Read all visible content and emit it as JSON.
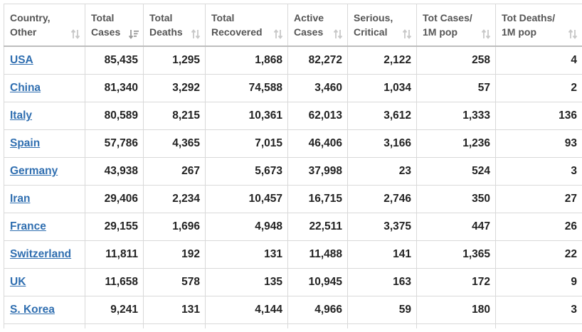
{
  "headers": [
    {
      "line1": "Country,",
      "line2": "Other",
      "sort_icon": "sort-both-icon"
    },
    {
      "line1": "Total",
      "line2": "Cases",
      "sort_icon": "sort-desc-icon"
    },
    {
      "line1": "Total",
      "line2": "Deaths",
      "sort_icon": "sort-both-icon"
    },
    {
      "line1": "Total",
      "line2": "Recovered",
      "sort_icon": "sort-both-icon"
    },
    {
      "line1": "Active",
      "line2": "Cases",
      "sort_icon": "sort-both-icon"
    },
    {
      "line1": "Serious,",
      "line2": "Critical",
      "sort_icon": "sort-both-icon"
    },
    {
      "line1": "Tot Cases/",
      "line2": "1M pop",
      "sort_icon": "sort-both-icon"
    },
    {
      "line1": "Tot Deaths/",
      "line2": "1M pop",
      "sort_icon": "sort-both-icon"
    }
  ],
  "rows": [
    {
      "country": "USA",
      "total_cases": "85,435",
      "total_deaths": "1,295",
      "total_recovered": "1,868",
      "active_cases": "82,272",
      "serious_critical": "2,122",
      "cases_per_1m": "258",
      "deaths_per_1m": "4"
    },
    {
      "country": "China",
      "total_cases": "81,340",
      "total_deaths": "3,292",
      "total_recovered": "74,588",
      "active_cases": "3,460",
      "serious_critical": "1,034",
      "cases_per_1m": "57",
      "deaths_per_1m": "2"
    },
    {
      "country": "Italy",
      "total_cases": "80,589",
      "total_deaths": "8,215",
      "total_recovered": "10,361",
      "active_cases": "62,013",
      "serious_critical": "3,612",
      "cases_per_1m": "1,333",
      "deaths_per_1m": "136"
    },
    {
      "country": "Spain",
      "total_cases": "57,786",
      "total_deaths": "4,365",
      "total_recovered": "7,015",
      "active_cases": "46,406",
      "serious_critical": "3,166",
      "cases_per_1m": "1,236",
      "deaths_per_1m": "93"
    },
    {
      "country": "Germany",
      "total_cases": "43,938",
      "total_deaths": "267",
      "total_recovered": "5,673",
      "active_cases": "37,998",
      "serious_critical": "23",
      "cases_per_1m": "524",
      "deaths_per_1m": "3"
    },
    {
      "country": "Iran",
      "total_cases": "29,406",
      "total_deaths": "2,234",
      "total_recovered": "10,457",
      "active_cases": "16,715",
      "serious_critical": "2,746",
      "cases_per_1m": "350",
      "deaths_per_1m": "27"
    },
    {
      "country": "France",
      "total_cases": "29,155",
      "total_deaths": "1,696",
      "total_recovered": "4,948",
      "active_cases": "22,511",
      "serious_critical": "3,375",
      "cases_per_1m": "447",
      "deaths_per_1m": "26"
    },
    {
      "country": "Switzerland",
      "total_cases": "11,811",
      "total_deaths": "192",
      "total_recovered": "131",
      "active_cases": "11,488",
      "serious_critical": "141",
      "cases_per_1m": "1,365",
      "deaths_per_1m": "22"
    },
    {
      "country": "UK",
      "total_cases": "11,658",
      "total_deaths": "578",
      "total_recovered": "135",
      "active_cases": "10,945",
      "serious_critical": "163",
      "cases_per_1m": "172",
      "deaths_per_1m": "9"
    },
    {
      "country": "S. Korea",
      "total_cases": "9,241",
      "total_deaths": "131",
      "total_recovered": "4,144",
      "active_cases": "4,966",
      "serious_critical": "59",
      "cases_per_1m": "180",
      "deaths_per_1m": "3"
    }
  ],
  "colors": {
    "link": "#2f6eb0",
    "header_text": "#555555",
    "border": "#d9d9d9",
    "icon": "#c8c8c8",
    "icon_active": "#9a9a9a"
  }
}
